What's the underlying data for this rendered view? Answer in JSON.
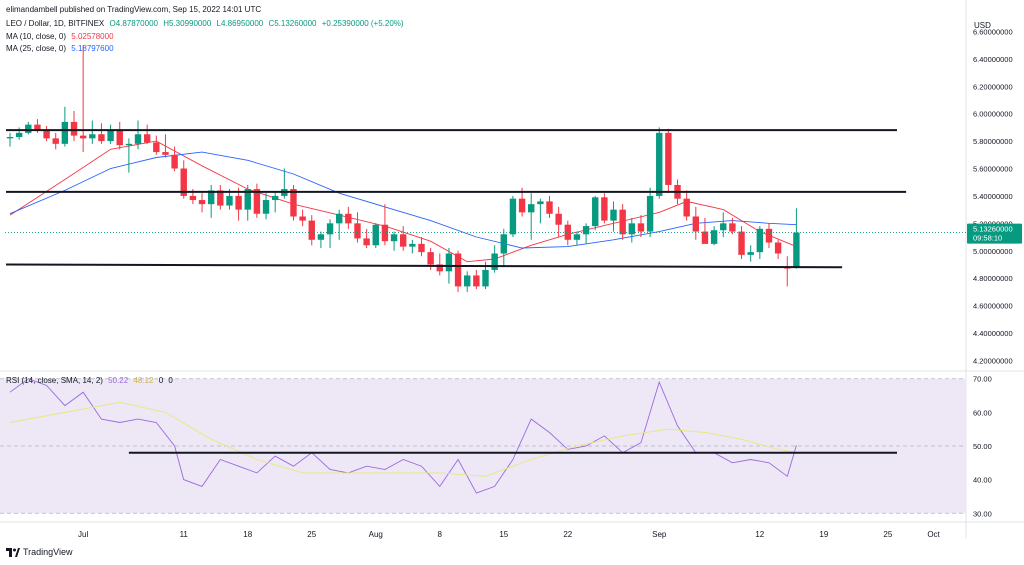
{
  "publisher_line": "elimandambell published on TradingView.com, Sep 15, 2022 14:01 UTC",
  "symbol": "LEO / Dollar, 1D, BITFINEX",
  "ohlc": {
    "open": "O4.87870000",
    "high": "H5.30990000",
    "low": "L4.86950000",
    "close": "C5.13260000",
    "change": "+0.25390000 (+5.20%)"
  },
  "ma10": {
    "label": "MA (10, close, 0)",
    "value": "5.02578000"
  },
  "ma25": {
    "label": "MA (25, close, 0)",
    "value": "5.18797600"
  },
  "rsi": {
    "label": "RSI (14, close, SMA, 14, 2)",
    "value": "50.22",
    "sma_value": "48.12",
    "extra1": "0",
    "extra2": "0"
  },
  "currency": "USD",
  "price_badge": {
    "price": "5.13260000",
    "countdown": "09:58:10"
  },
  "footer": "TradingView",
  "colors": {
    "up": "#089981",
    "down": "#f23645",
    "ma10": "#f23645",
    "ma25": "#2962ff",
    "rsi": "#9c6ade",
    "rsi_ma": "#e8e87a",
    "rsi_band": "#ede7f6"
  },
  "chart_data": [
    {
      "type": "candlestick",
      "title": "LEO / Dollar, 1D, BITFINEX",
      "y_axis": {
        "ticks": [
          "6.60000000",
          "6.40000000",
          "6.20000000",
          "6.00000000",
          "5.80000000",
          "5.60000000",
          "5.40000000",
          "5.20000000",
          "5.00000000",
          "4.80000000",
          "4.60000000",
          "4.40000000",
          "4.20000000"
        ],
        "ylim": [
          4.13,
          6.72
        ],
        "scale": "linear"
      },
      "x_axis": {
        "ticks": [
          "Jul",
          "11",
          "18",
          "25",
          "Aug",
          "8",
          "15",
          "22",
          "Sep",
          "12",
          "19",
          "25",
          "Oct"
        ],
        "range": [
          "2022-06-22",
          "2022-10-04"
        ]
      },
      "candles": [
        {
          "date": "2022-06-22",
          "o": 5.82,
          "h": 5.86,
          "l": 5.76,
          "c": 5.83
        },
        {
          "date": "2022-06-23",
          "o": 5.83,
          "h": 5.9,
          "l": 5.81,
          "c": 5.86
        },
        {
          "date": "2022-06-24",
          "o": 5.86,
          "h": 5.94,
          "l": 5.85,
          "c": 5.92
        },
        {
          "date": "2022-06-25",
          "o": 5.92,
          "h": 5.96,
          "l": 5.86,
          "c": 5.88
        },
        {
          "date": "2022-06-26",
          "o": 5.88,
          "h": 5.91,
          "l": 5.8,
          "c": 5.82
        },
        {
          "date": "2022-06-27",
          "o": 5.82,
          "h": 5.86,
          "l": 5.74,
          "c": 5.78
        },
        {
          "date": "2022-06-28",
          "o": 5.78,
          "h": 6.05,
          "l": 5.76,
          "c": 5.94
        },
        {
          "date": "2022-06-29",
          "o": 5.94,
          "h": 6.02,
          "l": 5.8,
          "c": 5.84
        },
        {
          "date": "2022-06-30",
          "o": 5.84,
          "h": 6.5,
          "l": 5.72,
          "c": 5.82
        },
        {
          "date": "2022-07-01",
          "o": 5.82,
          "h": 5.95,
          "l": 5.78,
          "c": 5.85
        },
        {
          "date": "2022-07-02",
          "o": 5.85,
          "h": 5.93,
          "l": 5.78,
          "c": 5.8
        },
        {
          "date": "2022-07-03",
          "o": 5.8,
          "h": 5.92,
          "l": 5.78,
          "c": 5.88
        },
        {
          "date": "2022-07-04",
          "o": 5.88,
          "h": 5.94,
          "l": 5.74,
          "c": 5.77
        },
        {
          "date": "2022-07-05",
          "o": 5.77,
          "h": 5.82,
          "l": 5.57,
          "c": 5.78
        },
        {
          "date": "2022-07-06",
          "o": 5.78,
          "h": 5.95,
          "l": 5.74,
          "c": 5.85
        },
        {
          "date": "2022-07-07",
          "o": 5.85,
          "h": 5.92,
          "l": 5.78,
          "c": 5.79
        },
        {
          "date": "2022-07-08",
          "o": 5.79,
          "h": 5.84,
          "l": 5.7,
          "c": 5.72
        },
        {
          "date": "2022-07-09",
          "o": 5.72,
          "h": 5.85,
          "l": 5.68,
          "c": 5.7
        },
        {
          "date": "2022-07-10",
          "o": 5.7,
          "h": 5.76,
          "l": 5.58,
          "c": 5.6
        },
        {
          "date": "2022-07-11",
          "o": 5.6,
          "h": 5.66,
          "l": 5.38,
          "c": 5.4
        },
        {
          "date": "2022-07-12",
          "o": 5.4,
          "h": 5.45,
          "l": 5.34,
          "c": 5.37
        },
        {
          "date": "2022-07-13",
          "o": 5.37,
          "h": 5.42,
          "l": 5.28,
          "c": 5.34
        },
        {
          "date": "2022-07-14",
          "o": 5.34,
          "h": 5.48,
          "l": 5.24,
          "c": 5.44
        },
        {
          "date": "2022-07-15",
          "o": 5.44,
          "h": 5.48,
          "l": 5.3,
          "c": 5.33
        },
        {
          "date": "2022-07-16",
          "o": 5.33,
          "h": 5.45,
          "l": 5.3,
          "c": 5.4
        },
        {
          "date": "2022-07-17",
          "o": 5.4,
          "h": 5.46,
          "l": 5.22,
          "c": 5.3
        },
        {
          "date": "2022-07-18",
          "o": 5.3,
          "h": 5.48,
          "l": 5.22,
          "c": 5.45
        },
        {
          "date": "2022-07-19",
          "o": 5.45,
          "h": 5.49,
          "l": 5.24,
          "c": 5.27
        },
        {
          "date": "2022-07-20",
          "o": 5.27,
          "h": 5.42,
          "l": 5.23,
          "c": 5.37
        },
        {
          "date": "2022-07-21",
          "o": 5.37,
          "h": 5.43,
          "l": 5.28,
          "c": 5.4
        },
        {
          "date": "2022-07-22",
          "o": 5.4,
          "h": 5.6,
          "l": 5.38,
          "c": 5.45
        },
        {
          "date": "2022-07-23",
          "o": 5.45,
          "h": 5.48,
          "l": 5.22,
          "c": 5.25
        },
        {
          "date": "2022-07-24",
          "o": 5.25,
          "h": 5.3,
          "l": 5.18,
          "c": 5.22
        },
        {
          "date": "2022-07-25",
          "o": 5.22,
          "h": 5.26,
          "l": 5.04,
          "c": 5.08
        },
        {
          "date": "2022-07-26",
          "o": 5.08,
          "h": 5.14,
          "l": 5.02,
          "c": 5.12
        },
        {
          "date": "2022-07-27",
          "o": 5.12,
          "h": 5.23,
          "l": 5.02,
          "c": 5.2
        },
        {
          "date": "2022-07-28",
          "o": 5.2,
          "h": 5.3,
          "l": 5.08,
          "c": 5.27
        },
        {
          "date": "2022-07-29",
          "o": 5.27,
          "h": 5.32,
          "l": 5.16,
          "c": 5.2
        },
        {
          "date": "2022-07-30",
          "o": 5.2,
          "h": 5.28,
          "l": 5.06,
          "c": 5.09
        },
        {
          "date": "2022-07-31",
          "o": 5.09,
          "h": 5.16,
          "l": 5.02,
          "c": 5.04
        },
        {
          "date": "2022-08-01",
          "o": 5.04,
          "h": 5.2,
          "l": 5.02,
          "c": 5.19
        },
        {
          "date": "2022-08-02",
          "o": 5.19,
          "h": 5.34,
          "l": 5.04,
          "c": 5.07
        },
        {
          "date": "2022-08-03",
          "o": 5.07,
          "h": 5.14,
          "l": 5.0,
          "c": 5.12
        },
        {
          "date": "2022-08-04",
          "o": 5.12,
          "h": 5.18,
          "l": 5.0,
          "c": 5.03
        },
        {
          "date": "2022-08-05",
          "o": 5.03,
          "h": 5.08,
          "l": 4.98,
          "c": 5.05
        },
        {
          "date": "2022-08-06",
          "o": 5.05,
          "h": 5.1,
          "l": 4.96,
          "c": 4.99
        },
        {
          "date": "2022-08-07",
          "o": 4.99,
          "h": 5.02,
          "l": 4.86,
          "c": 4.9
        },
        {
          "date": "2022-08-08",
          "o": 4.9,
          "h": 4.98,
          "l": 4.82,
          "c": 4.85
        },
        {
          "date": "2022-08-09",
          "o": 4.85,
          "h": 5.02,
          "l": 4.76,
          "c": 4.98
        },
        {
          "date": "2022-08-10",
          "o": 4.98,
          "h": 5.0,
          "l": 4.7,
          "c": 4.74
        },
        {
          "date": "2022-08-11",
          "o": 4.74,
          "h": 4.85,
          "l": 4.7,
          "c": 4.82
        },
        {
          "date": "2022-08-12",
          "o": 4.82,
          "h": 4.86,
          "l": 4.72,
          "c": 4.74
        },
        {
          "date": "2022-08-13",
          "o": 4.74,
          "h": 4.92,
          "l": 4.72,
          "c": 4.86
        },
        {
          "date": "2022-08-14",
          "o": 4.86,
          "h": 5.04,
          "l": 4.84,
          "c": 4.98
        },
        {
          "date": "2022-08-15",
          "o": 4.98,
          "h": 5.16,
          "l": 4.88,
          "c": 5.12
        },
        {
          "date": "2022-08-16",
          "o": 5.12,
          "h": 5.4,
          "l": 5.1,
          "c": 5.38
        },
        {
          "date": "2022-08-17",
          "o": 5.38,
          "h": 5.46,
          "l": 5.25,
          "c": 5.28
        },
        {
          "date": "2022-08-18",
          "o": 5.28,
          "h": 5.42,
          "l": 5.08,
          "c": 5.34
        },
        {
          "date": "2022-08-19",
          "o": 5.34,
          "h": 5.38,
          "l": 5.2,
          "c": 5.36
        },
        {
          "date": "2022-08-20",
          "o": 5.36,
          "h": 5.4,
          "l": 5.24,
          "c": 5.27
        },
        {
          "date": "2022-08-21",
          "o": 5.27,
          "h": 5.32,
          "l": 5.1,
          "c": 5.19
        },
        {
          "date": "2022-08-22",
          "o": 5.19,
          "h": 5.22,
          "l": 5.04,
          "c": 5.08
        },
        {
          "date": "2022-08-23",
          "o": 5.08,
          "h": 5.14,
          "l": 5.04,
          "c": 5.12
        },
        {
          "date": "2022-08-24",
          "o": 5.12,
          "h": 5.2,
          "l": 5.05,
          "c": 5.18
        },
        {
          "date": "2022-08-25",
          "o": 5.18,
          "h": 5.4,
          "l": 5.15,
          "c": 5.39
        },
        {
          "date": "2022-08-26",
          "o": 5.39,
          "h": 5.42,
          "l": 5.2,
          "c": 5.22
        },
        {
          "date": "2022-08-27",
          "o": 5.22,
          "h": 5.36,
          "l": 5.14,
          "c": 5.3
        },
        {
          "date": "2022-08-28",
          "o": 5.3,
          "h": 5.34,
          "l": 5.08,
          "c": 5.12
        },
        {
          "date": "2022-08-29",
          "o": 5.12,
          "h": 5.24,
          "l": 5.06,
          "c": 5.2
        },
        {
          "date": "2022-08-30",
          "o": 5.2,
          "h": 5.26,
          "l": 5.1,
          "c": 5.14
        },
        {
          "date": "2022-08-31",
          "o": 5.14,
          "h": 5.46,
          "l": 5.1,
          "c": 5.4
        },
        {
          "date": "2022-09-01",
          "o": 5.4,
          "h": 5.9,
          "l": 5.38,
          "c": 5.86
        },
        {
          "date": "2022-09-02",
          "o": 5.86,
          "h": 5.89,
          "l": 5.42,
          "c": 5.48
        },
        {
          "date": "2022-09-03",
          "o": 5.48,
          "h": 5.52,
          "l": 5.34,
          "c": 5.38
        },
        {
          "date": "2022-09-04",
          "o": 5.38,
          "h": 5.44,
          "l": 5.22,
          "c": 5.25
        },
        {
          "date": "2022-09-05",
          "o": 5.25,
          "h": 5.32,
          "l": 5.08,
          "c": 5.14
        },
        {
          "date": "2022-09-06",
          "o": 5.14,
          "h": 5.24,
          "l": 5.06,
          "c": 5.05
        },
        {
          "date": "2022-09-07",
          "o": 5.05,
          "h": 5.18,
          "l": 5.04,
          "c": 5.15
        },
        {
          "date": "2022-09-08",
          "o": 5.15,
          "h": 5.28,
          "l": 5.1,
          "c": 5.2
        },
        {
          "date": "2022-09-09",
          "o": 5.2,
          "h": 5.24,
          "l": 5.12,
          "c": 5.14
        },
        {
          "date": "2022-09-10",
          "o": 5.14,
          "h": 5.18,
          "l": 4.94,
          "c": 4.97
        },
        {
          "date": "2022-09-11",
          "o": 4.97,
          "h": 5.04,
          "l": 4.92,
          "c": 4.99
        },
        {
          "date": "2022-09-12",
          "o": 4.99,
          "h": 5.18,
          "l": 4.94,
          "c": 5.16
        },
        {
          "date": "2022-09-13",
          "o": 5.16,
          "h": 5.2,
          "l": 5.02,
          "c": 5.06
        },
        {
          "date": "2022-09-14",
          "o": 5.06,
          "h": 5.08,
          "l": 4.94,
          "c": 4.98
        },
        {
          "date": "2022-09-15",
          "o": 4.88,
          "h": 4.96,
          "l": 4.74,
          "c": 4.87
        },
        {
          "date": "2022-09-16",
          "o": 4.8787,
          "h": 5.3099,
          "l": 4.8695,
          "c": 5.1326
        }
      ],
      "series": [
        {
          "name": "MA (10, close, 0)",
          "color": "#f23645",
          "dates": [
            "2022-06-22",
            "2022-06-28",
            "2022-07-03",
            "2022-07-08",
            "2022-07-13",
            "2022-07-18",
            "2022-07-23",
            "2022-07-28",
            "2022-08-02",
            "2022-08-07",
            "2022-08-11",
            "2022-08-14",
            "2022-08-18",
            "2022-08-22",
            "2022-08-27",
            "2022-09-01",
            "2022-09-04",
            "2022-09-08",
            "2022-09-12",
            "2022-09-16"
          ],
          "values": [
            5.26,
            5.52,
            5.74,
            5.8,
            5.62,
            5.45,
            5.34,
            5.26,
            5.18,
            5.07,
            4.92,
            4.94,
            5.04,
            5.12,
            5.2,
            5.28,
            5.36,
            5.3,
            5.14,
            5.03
          ]
        },
        {
          "name": "MA (25, close, 0)",
          "color": "#2962ff",
          "dates": [
            "2022-06-22",
            "2022-06-28",
            "2022-07-03",
            "2022-07-08",
            "2022-07-13",
            "2022-07-18",
            "2022-07-23",
            "2022-07-28",
            "2022-08-02",
            "2022-08-07",
            "2022-08-12",
            "2022-08-17",
            "2022-08-22",
            "2022-08-27",
            "2022-09-01",
            "2022-09-05",
            "2022-09-09",
            "2022-09-13",
            "2022-09-16"
          ],
          "values": [
            5.27,
            5.44,
            5.6,
            5.68,
            5.72,
            5.66,
            5.56,
            5.42,
            5.32,
            5.22,
            5.1,
            5.02,
            5.03,
            5.08,
            5.14,
            5.2,
            5.22,
            5.2,
            5.19
          ]
        }
      ],
      "horizontal_lines": [
        {
          "y_start": 5.88,
          "y_end": 5.88,
          "x_start": "2022-06-22",
          "x_end": "2022-09-27"
        },
        {
          "y_start": 5.43,
          "y_end": 5.43,
          "x_start": "2022-06-22",
          "x_end": "2022-09-28"
        },
        {
          "y_start": 4.9,
          "y_end": 4.88,
          "x_start": "2022-06-22",
          "x_end": "2022-09-21"
        }
      ],
      "current_price": 5.1326
    },
    {
      "type": "line",
      "title": "RSI (14, close, SMA, 14, 2)",
      "y_axis": {
        "ticks": [
          "70.00",
          "60.00",
          "50.00",
          "40.00",
          "30.00"
        ],
        "ylim": [
          28,
          72
        ]
      },
      "band": [
        30,
        70
      ],
      "series": [
        {
          "name": "RSI",
          "color": "#9c6ade",
          "dates": [
            "2022-06-22",
            "2022-06-24",
            "2022-06-26",
            "2022-06-28",
            "2022-06-30",
            "2022-07-02",
            "2022-07-04",
            "2022-07-06",
            "2022-07-08",
            "2022-07-10",
            "2022-07-11",
            "2022-07-13",
            "2022-07-15",
            "2022-07-17",
            "2022-07-19",
            "2022-07-21",
            "2022-07-23",
            "2022-07-25",
            "2022-07-27",
            "2022-07-29",
            "2022-07-31",
            "2022-08-02",
            "2022-08-04",
            "2022-08-06",
            "2022-08-08",
            "2022-08-10",
            "2022-08-12",
            "2022-08-14",
            "2022-08-16",
            "2022-08-18",
            "2022-08-20",
            "2022-08-22",
            "2022-08-24",
            "2022-08-26",
            "2022-08-28",
            "2022-08-30",
            "2022-09-01",
            "2022-09-03",
            "2022-09-05",
            "2022-09-07",
            "2022-09-09",
            "2022-09-11",
            "2022-09-13",
            "2022-09-15",
            "2022-09-16"
          ],
          "values": [
            66,
            70,
            68,
            62,
            66,
            58,
            57,
            58,
            57,
            50,
            40,
            38,
            46,
            44,
            42,
            47,
            44,
            48,
            43,
            42,
            44,
            43,
            46,
            44,
            38,
            46,
            36,
            38,
            46,
            58,
            54,
            49,
            50,
            53,
            48,
            51,
            69,
            56,
            48,
            48,
            45,
            46,
            45,
            41,
            50.22
          ]
        },
        {
          "name": "SMA",
          "color": "#e8e87a",
          "dates": [
            "2022-06-22",
            "2022-06-30",
            "2022-07-04",
            "2022-07-09",
            "2022-07-14",
            "2022-07-19",
            "2022-07-24",
            "2022-07-29",
            "2022-08-03",
            "2022-08-08",
            "2022-08-13",
            "2022-08-18",
            "2022-08-23",
            "2022-08-28",
            "2022-09-02",
            "2022-09-06",
            "2022-09-10",
            "2022-09-14",
            "2022-09-16"
          ],
          "values": [
            57,
            61,
            63,
            60,
            52,
            46,
            42,
            42,
            42,
            42,
            41,
            46,
            50,
            53,
            55,
            54,
            52,
            49,
            48.12
          ]
        }
      ],
      "horizontal_lines": [
        {
          "y_start": 48,
          "y_end": 48,
          "x_start": "2022-07-05",
          "x_end": "2022-09-27"
        }
      ]
    }
  ]
}
